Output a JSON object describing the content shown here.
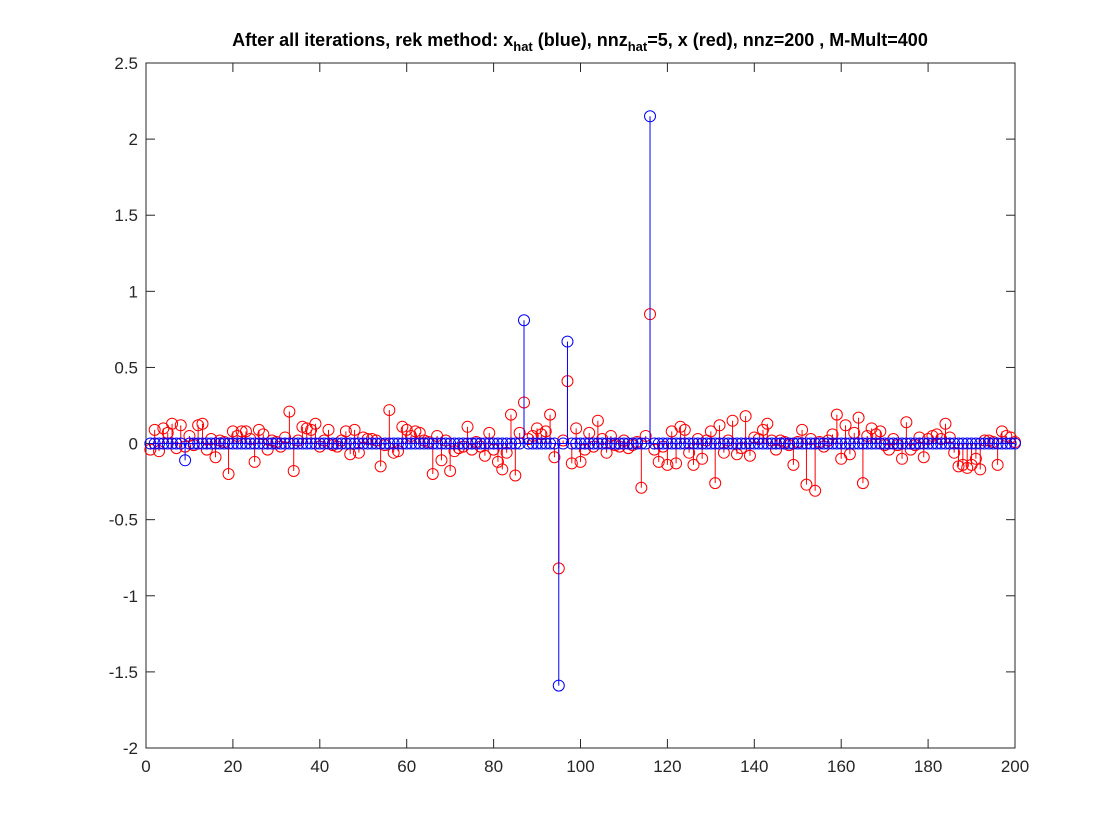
{
  "chart_data": {
    "type": "stem",
    "title_parts": [
      {
        "text": "After all iterations, rek method: x",
        "sub": false
      },
      {
        "text": "hat",
        "sub": true
      },
      {
        "text": " (blue), nnz",
        "sub": false
      },
      {
        "text": "hat",
        "sub": true
      },
      {
        "text": "=5, x (red), nnz=200 , M-Mult=400",
        "sub": false
      }
    ],
    "xlim": [
      0,
      200
    ],
    "ylim": [
      -2,
      2.5
    ],
    "xticks": [
      0,
      20,
      40,
      60,
      80,
      100,
      120,
      140,
      160,
      180,
      200
    ],
    "yticks": [
      -2,
      -1.5,
      -1,
      -0.5,
      0,
      0.5,
      1,
      1.5,
      2,
      2.5
    ],
    "xtick_labels": [
      "0",
      "20",
      "40",
      "60",
      "80",
      "100",
      "120",
      "140",
      "160",
      "180",
      "200"
    ],
    "ytick_labels": [
      "-2",
      "-1.5",
      "-1",
      "-0.5",
      "0",
      "0.5",
      "1",
      "1.5",
      "2",
      "2.5"
    ],
    "grid": false,
    "marker": "circle",
    "series": [
      {
        "color": "#ff0000",
        "x": [
          1,
          2,
          3,
          4,
          5,
          6,
          7,
          8,
          9,
          10,
          11,
          12,
          13,
          14,
          15,
          16,
          17,
          18,
          19,
          20,
          21,
          22,
          23,
          24,
          25,
          26,
          27,
          28,
          29,
          30,
          31,
          32,
          33,
          34,
          35,
          36,
          37,
          38,
          39,
          40,
          41,
          42,
          43,
          44,
          45,
          46,
          47,
          48,
          49,
          50,
          51,
          52,
          53,
          54,
          55,
          56,
          57,
          58,
          59,
          60,
          61,
          62,
          63,
          64,
          65,
          66,
          67,
          68,
          69,
          70,
          71,
          72,
          73,
          74,
          75,
          76,
          77,
          78,
          79,
          80,
          81,
          82,
          83,
          84,
          85,
          86,
          87,
          88,
          89,
          90,
          91,
          92,
          93,
          94,
          95,
          96,
          97,
          98,
          99,
          100,
          101,
          102,
          103,
          104,
          105,
          106,
          107,
          108,
          109,
          110,
          111,
          112,
          113,
          114,
          115,
          116,
          117,
          118,
          119,
          120,
          121,
          122,
          123,
          124,
          125,
          126,
          127,
          128,
          129,
          130,
          131,
          132,
          133,
          134,
          135,
          136,
          137,
          138,
          139,
          140,
          141,
          142,
          143,
          144,
          145,
          146,
          147,
          148,
          149,
          150,
          151,
          152,
          153,
          154,
          155,
          156,
          157,
          158,
          159,
          160,
          161,
          162,
          163,
          164,
          165,
          166,
          167,
          168,
          169,
          170,
          171,
          172,
          173,
          174,
          175,
          176,
          177,
          178,
          179,
          180,
          181,
          182,
          183,
          184,
          185,
          186,
          187,
          188,
          189,
          190,
          191,
          192,
          193,
          194,
          195,
          196,
          197,
          198,
          199,
          200
        ],
        "y": [
          -0.04,
          0.09,
          -0.05,
          0.1,
          0.07,
          0.13,
          -0.03,
          0.12,
          -0.02,
          0.05,
          -0.01,
          0.12,
          0.13,
          -0.04,
          0.03,
          -0.09,
          0.02,
          0.01,
          -0.2,
          0.08,
          0.05,
          0.08,
          0.08,
          0.03,
          -0.12,
          0.09,
          0.06,
          -0.04,
          0.02,
          0.01,
          -0.02,
          0.04,
          0.21,
          -0.18,
          0.02,
          0.11,
          0.1,
          0.09,
          0.13,
          -0.02,
          0.02,
          0.09,
          -0.01,
          -0.02,
          0.02,
          0.08,
          -0.07,
          0.09,
          -0.06,
          0.04,
          0.03,
          0.03,
          0.02,
          -0.15,
          -0.01,
          0.22,
          -0.06,
          -0.05,
          0.11,
          0.09,
          0.05,
          0.08,
          0.07,
          0.02,
          0.01,
          -0.2,
          0.05,
          -0.11,
          0.02,
          -0.18,
          -0.05,
          -0.03,
          -0.02,
          0.11,
          -0.04,
          0.01,
          -0.02,
          -0.08,
          0.07,
          -0.04,
          -0.12,
          -0.17,
          -0.06,
          0.19,
          -0.21,
          0.07,
          0.27,
          0.03,
          0.05,
          0.1,
          0.06,
          0.08,
          0.19,
          -0.09,
          -0.82,
          0.02,
          0.41,
          -0.13,
          0.1,
          -0.12,
          -0.04,
          0.07,
          -0.02,
          0.15,
          0.03,
          -0.06,
          0.05,
          -0.01,
          -0.02,
          0.02,
          -0.03,
          -0.01,
          0.01,
          -0.29,
          0.05,
          0.85,
          -0.04,
          -0.12,
          -0.02,
          -0.14,
          0.08,
          -0.13,
          0.11,
          0.09,
          -0.06,
          -0.14,
          0.03,
          -0.1,
          0.02,
          0.08,
          -0.26,
          0.12,
          -0.06,
          0.02,
          0.15,
          -0.07,
          -0.03,
          0.18,
          -0.08,
          0.04,
          0.03,
          0.09,
          0.13,
          0.02,
          -0.04,
          0.02,
          0.01,
          -0.01,
          -0.14,
          0.01,
          0.09,
          -0.27,
          0.03,
          -0.31,
          0.01,
          -0.02,
          0.02,
          0.06,
          0.19,
          -0.1,
          0.12,
          -0.07,
          0.07,
          0.17,
          -0.26,
          0.05,
          0.1,
          0.06,
          0.08,
          -0.01,
          -0.04,
          0.03,
          -0.01,
          -0.1,
          0.14,
          -0.04,
          -0.01,
          0.04,
          -0.09,
          0.03,
          0.05,
          0.06,
          0.03,
          0.13,
          0.04,
          -0.06,
          -0.15,
          -0.14,
          -0.16,
          -0.14,
          -0.1,
          -0.17,
          0.02,
          0.02,
          0.01,
          -0.14,
          0.08,
          0.05,
          0.04,
          0.01
        ]
      },
      {
        "color": "#0000ff",
        "x": [
          1,
          2,
          3,
          4,
          5,
          6,
          7,
          8,
          9,
          10,
          11,
          12,
          13,
          14,
          15,
          16,
          17,
          18,
          19,
          20,
          21,
          22,
          23,
          24,
          25,
          26,
          27,
          28,
          29,
          30,
          31,
          32,
          33,
          34,
          35,
          36,
          37,
          38,
          39,
          40,
          41,
          42,
          43,
          44,
          45,
          46,
          47,
          48,
          49,
          50,
          51,
          52,
          53,
          54,
          55,
          56,
          57,
          58,
          59,
          60,
          61,
          62,
          63,
          64,
          65,
          66,
          67,
          68,
          69,
          70,
          71,
          72,
          73,
          74,
          75,
          76,
          77,
          78,
          79,
          80,
          81,
          82,
          83,
          84,
          85,
          86,
          87,
          88,
          89,
          90,
          91,
          92,
          93,
          94,
          95,
          96,
          97,
          98,
          99,
          100,
          101,
          102,
          103,
          104,
          105,
          106,
          107,
          108,
          109,
          110,
          111,
          112,
          113,
          114,
          115,
          116,
          117,
          118,
          119,
          120,
          121,
          122,
          123,
          124,
          125,
          126,
          127,
          128,
          129,
          130,
          131,
          132,
          133,
          134,
          135,
          136,
          137,
          138,
          139,
          140,
          141,
          142,
          143,
          144,
          145,
          146,
          147,
          148,
          149,
          150,
          151,
          152,
          153,
          154,
          155,
          156,
          157,
          158,
          159,
          160,
          161,
          162,
          163,
          164,
          165,
          166,
          167,
          168,
          169,
          170,
          171,
          172,
          173,
          174,
          175,
          176,
          177,
          178,
          179,
          180,
          181,
          182,
          183,
          184,
          185,
          186,
          187,
          188,
          189,
          190,
          191,
          192,
          193,
          194,
          195,
          196,
          197,
          198,
          199,
          200
        ],
        "y": [
          0,
          0,
          0,
          0,
          0,
          0,
          0,
          0,
          -0.11,
          0,
          0,
          0,
          0,
          0,
          0,
          0,
          0,
          0,
          0,
          0,
          0,
          0,
          0,
          0,
          0,
          0,
          0,
          0,
          0,
          0,
          0,
          0,
          0,
          0,
          0,
          0,
          0,
          0,
          0,
          0,
          0,
          0,
          0,
          0,
          0,
          0,
          0,
          0,
          0,
          0,
          0,
          0,
          0,
          0,
          0,
          0,
          0,
          0,
          0,
          0,
          0,
          0,
          0,
          0,
          0,
          0,
          0,
          0,
          0,
          0,
          0,
          0,
          0,
          0,
          0,
          0,
          0,
          0,
          0,
          0,
          0,
          0,
          0,
          0,
          0,
          0,
          0.81,
          0,
          0,
          0,
          0,
          0,
          0,
          0,
          -1.59,
          0,
          0.67,
          0,
          0,
          0,
          0,
          0,
          0,
          0,
          0,
          0,
          0,
          0,
          0,
          0,
          0,
          0,
          0,
          0,
          0,
          2.15,
          0,
          0,
          0,
          0,
          0,
          0,
          0,
          0,
          0,
          0,
          0,
          0,
          0,
          0,
          0,
          0,
          0,
          0,
          0,
          0,
          0,
          0,
          0,
          0,
          0,
          0,
          0,
          0,
          0,
          0,
          0,
          0,
          0,
          0,
          0,
          0,
          0,
          0,
          0,
          0,
          0,
          0,
          0,
          0,
          0,
          0,
          0,
          0,
          0,
          0,
          0,
          0,
          0,
          0,
          0,
          0,
          0,
          0,
          0,
          0,
          0,
          0,
          0,
          0,
          0,
          0,
          0,
          0,
          0,
          0,
          0,
          0,
          0,
          0,
          0,
          0,
          0,
          0,
          0,
          0,
          0,
          0,
          0,
          0
        ]
      }
    ]
  }
}
